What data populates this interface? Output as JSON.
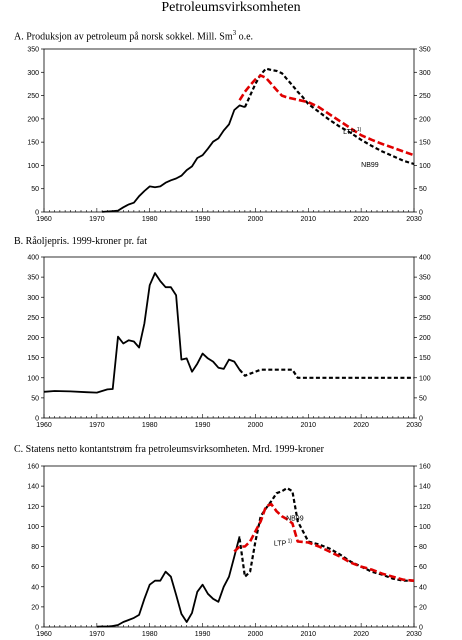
{
  "page_title": "Petroleumsvirksomheten",
  "chart_data": [
    {
      "type": "line",
      "panel": "A",
      "title": "A.  Produksjon av petroleum på norsk sokkel. Mill. Sm",
      "title_sup": "3",
      "title_suffix": " o.e.",
      "xlim": [
        1960,
        2030
      ],
      "ylim": [
        0,
        350
      ],
      "xticks": [
        1960,
        1970,
        1980,
        1990,
        2000,
        2010,
        2020,
        2030
      ],
      "yticks": [
        0,
        50,
        100,
        150,
        200,
        250,
        300,
        350
      ],
      "series": [
        {
          "style": "solid-black",
          "x": [
            1971,
            1972,
            1973,
            1974,
            1975,
            1976,
            1977,
            1978,
            1979,
            1980,
            1981,
            1982,
            1983,
            1984,
            1985,
            1986,
            1987,
            1988,
            1989,
            1990,
            1991,
            1992,
            1993,
            1994,
            1995,
            1996,
            1997,
            1998
          ],
          "y": [
            0.3,
            1,
            2,
            3,
            10,
            16,
            20,
            34,
            45,
            55,
            53,
            55,
            63,
            68,
            72,
            78,
            90,
            98,
            116,
            122,
            136,
            151,
            158,
            175,
            188,
            219,
            229,
            225
          ]
        },
        {
          "name": "NB99",
          "style": "dashed-black",
          "x": [
            1998,
            1999,
            2000,
            2001,
            2002,
            2003,
            2004,
            2005,
            2006,
            2007,
            2008,
            2009,
            2010,
            2012,
            2014,
            2016,
            2018,
            2020,
            2022,
            2024,
            2026,
            2028,
            2030
          ],
          "y": [
            225,
            250,
            275,
            295,
            308,
            305,
            303,
            298,
            285,
            272,
            258,
            246,
            232,
            215,
            198,
            183,
            170,
            155,
            142,
            130,
            120,
            110,
            103
          ]
        },
        {
          "name": "LTP",
          "name_sup": "1)",
          "style": "dashed-red",
          "x": [
            1997,
            1998,
            1999,
            2000,
            2001,
            2002,
            2003,
            2004,
            2005,
            2006,
            2008,
            2010,
            2012,
            2014,
            2016,
            2018,
            2020,
            2022,
            2024,
            2026,
            2028,
            2030
          ],
          "y": [
            240,
            258,
            272,
            285,
            293,
            288,
            275,
            262,
            250,
            246,
            241,
            236,
            225,
            210,
            195,
            180,
            165,
            155,
            146,
            138,
            130,
            122
          ]
        }
      ],
      "labels": [
        {
          "text": "LTP",
          "sup": "1)",
          "x": 2016.6,
          "y": 167
        },
        {
          "text": "NB99",
          "x": 2020,
          "y": 97
        }
      ]
    },
    {
      "type": "line",
      "panel": "B",
      "title": "B.  Råoljepris. 1999-kroner pr. fat",
      "xlim": [
        1960,
        2030
      ],
      "ylim": [
        0,
        400
      ],
      "xticks": [
        1960,
        1970,
        1980,
        1990,
        2000,
        2010,
        2020,
        2030
      ],
      "yticks": [
        0,
        50,
        100,
        150,
        200,
        250,
        300,
        350,
        400
      ],
      "series": [
        {
          "style": "solid-black",
          "x": [
            1960,
            1962,
            1965,
            1968,
            1970,
            1971,
            1972,
            1973,
            1974,
            1975,
            1976,
            1977,
            1978,
            1979,
            1980,
            1981,
            1982,
            1983,
            1984,
            1985,
            1986,
            1987,
            1988,
            1989,
            1990,
            1991,
            1992,
            1993,
            1994,
            1995,
            1996,
            1997
          ],
          "y": [
            65,
            67,
            66,
            64,
            63,
            67,
            71,
            72,
            202,
            185,
            193,
            190,
            175,
            235,
            330,
            360,
            340,
            325,
            325,
            305,
            145,
            148,
            115,
            135,
            160,
            148,
            140,
            125,
            122,
            145,
            140,
            120
          ]
        },
        {
          "style": "dashed-black",
          "x": [
            1997,
            1998,
            1999,
            2000,
            2001,
            2002,
            2003,
            2004,
            2005,
            2006,
            2007,
            2008,
            2009,
            2010,
            2015,
            2020,
            2025,
            2030
          ],
          "y": [
            120,
            105,
            110,
            115,
            120,
            120,
            120,
            120,
            120,
            120,
            120,
            100,
            100,
            100,
            100,
            100,
            100,
            100
          ]
        }
      ]
    },
    {
      "type": "line",
      "panel": "C",
      "title": "C.  Statens netto kontantstrøm fra petroleumsvirksomheten. Mrd. 1999-kroner",
      "xlim": [
        1960,
        2030
      ],
      "ylim": [
        0,
        160
      ],
      "xticks": [
        1960,
        1970,
        1980,
        1990,
        2000,
        2010,
        2020,
        2030
      ],
      "yticks": [
        0,
        20,
        40,
        60,
        80,
        100,
        120,
        140,
        160
      ],
      "series": [
        {
          "style": "solid-black",
          "x": [
            1970,
            1971,
            1972,
            1973,
            1974,
            1975,
            1976,
            1977,
            1978,
            1979,
            1980,
            1981,
            1982,
            1983,
            1984,
            1985,
            1986,
            1987,
            1988,
            1989,
            1990,
            1991,
            1992,
            1993,
            1994,
            1995,
            1996,
            1997
          ],
          "y": [
            0.3,
            0.5,
            0.5,
            1,
            2,
            5,
            7,
            9,
            12,
            28,
            42,
            46,
            46,
            55,
            50,
            32,
            13,
            5,
            14,
            35,
            42,
            33,
            28,
            25,
            40,
            50,
            70,
            90
          ]
        },
        {
          "name": "NB99",
          "style": "dashed-black",
          "x": [
            1997,
            1998,
            1999,
            2000,
            2001,
            2002,
            2003,
            2004,
            2005,
            2006,
            2007,
            2008,
            2009,
            2010,
            2012,
            2014,
            2016,
            2018,
            2020,
            2022,
            2024,
            2026,
            2028,
            2030
          ],
          "y": [
            88,
            50,
            55,
            85,
            110,
            118,
            125,
            133,
            135,
            138,
            135,
            105,
            95,
            85,
            82,
            78,
            72,
            65,
            60,
            55,
            52,
            48,
            46,
            46
          ]
        },
        {
          "name": "LTP",
          "name_sup": "1)",
          "style": "dashed-red",
          "x": [
            1996,
            1997,
            1998,
            1999,
            2000,
            2001,
            2002,
            2003,
            2004,
            2005,
            2006,
            2007,
            2008,
            2010,
            2012,
            2014,
            2016,
            2018,
            2020,
            2022,
            2024,
            2026,
            2028,
            2030
          ],
          "y": [
            75,
            80,
            80,
            85,
            95,
            105,
            120,
            122,
            115,
            110,
            107,
            103,
            85,
            84,
            80,
            75,
            70,
            64,
            60,
            57,
            53,
            50,
            47,
            46
          ]
        }
      ],
      "labels": [
        {
          "text": "NB99",
          "x": 2005.8,
          "y": 106
        },
        {
          "text": "LTP",
          "sup": "1)",
          "x": 2003.5,
          "y": 81
        }
      ]
    }
  ]
}
